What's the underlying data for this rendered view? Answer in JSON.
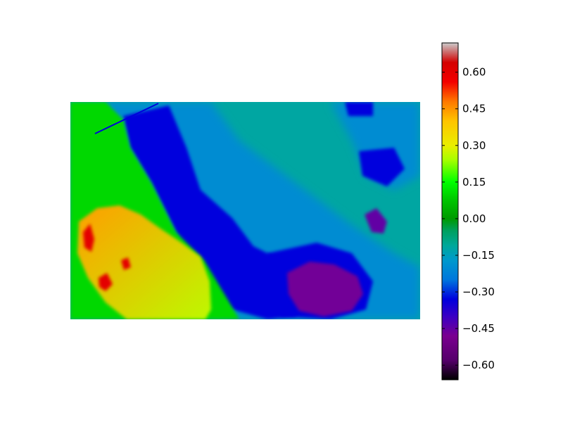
{
  "chart_data": {
    "type": "heatmap",
    "title": "",
    "xlabel": "",
    "ylabel": "",
    "axes_visible": false,
    "grid": false,
    "colormap": "nipy_spectral",
    "colorbar": {
      "placement": "right",
      "vmin": -0.66,
      "vmax": 0.72,
      "ticks": [
        {
          "value": -0.6,
          "label": "−0.60"
        },
        {
          "value": -0.45,
          "label": "−0.45"
        },
        {
          "value": -0.3,
          "label": "−0.30"
        },
        {
          "value": -0.15,
          "label": "−0.15"
        },
        {
          "value": 0.0,
          "label": "0.00"
        },
        {
          "value": 0.15,
          "label": "0.15"
        },
        {
          "value": 0.3,
          "label": "0.30"
        },
        {
          "value": 0.45,
          "label": "0.45"
        },
        {
          "value": 0.6,
          "label": "0.60"
        }
      ],
      "stops": [
        {
          "value": -0.66,
          "color": "#000000"
        },
        {
          "value": -0.58,
          "color": "#55006a"
        },
        {
          "value": -0.48,
          "color": "#7a0090"
        },
        {
          "value": -0.4,
          "color": "#3a00c4"
        },
        {
          "value": -0.33,
          "color": "#0000dd"
        },
        {
          "value": -0.25,
          "color": "#0077dd"
        },
        {
          "value": -0.17,
          "color": "#0099cc"
        },
        {
          "value": -0.11,
          "color": "#00a89a"
        },
        {
          "value": -0.05,
          "color": "#00a060"
        },
        {
          "value": 0.0,
          "color": "#009a00"
        },
        {
          "value": 0.08,
          "color": "#00c800"
        },
        {
          "value": 0.15,
          "color": "#00ff00"
        },
        {
          "value": 0.24,
          "color": "#a6ff00"
        },
        {
          "value": 0.3,
          "color": "#eaee00"
        },
        {
          "value": 0.4,
          "color": "#ffc400"
        },
        {
          "value": 0.48,
          "color": "#ff7800"
        },
        {
          "value": 0.56,
          "color": "#f30000"
        },
        {
          "value": 0.64,
          "color": "#d40000"
        },
        {
          "value": 0.68,
          "color": "#cc6666"
        },
        {
          "value": 0.72,
          "color": "#cccccc"
        }
      ]
    },
    "regions": [
      {
        "name": "background-field",
        "value": -0.12
      },
      {
        "name": "light-blue-band",
        "value": -0.2
      },
      {
        "name": "deep-blue-band",
        "value": -0.33
      },
      {
        "name": "purple-patch",
        "value": -0.47
      },
      {
        "name": "small-purple-spot",
        "value": -0.45
      },
      {
        "name": "green-flank",
        "value": 0.1
      },
      {
        "name": "yellow-lobe",
        "value": 0.38
      },
      {
        "name": "red-core",
        "value": 0.6
      }
    ]
  }
}
